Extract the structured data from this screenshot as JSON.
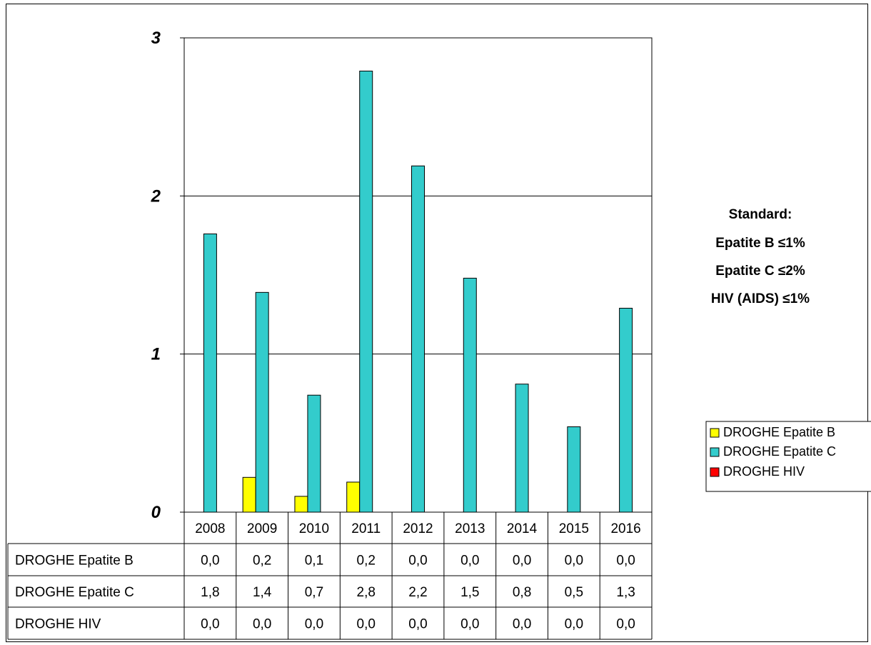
{
  "chart_data": {
    "type": "bar",
    "title": "",
    "xlabel": "",
    "ylabel": "",
    "ylim": [
      0,
      3
    ],
    "yticks": [
      "0",
      "1",
      "2",
      "3"
    ],
    "grid": true,
    "legend_position": "right",
    "categories": [
      "2008",
      "2009",
      "2010",
      "2011",
      "2012",
      "2013",
      "2014",
      "2015",
      "2016"
    ],
    "series": [
      {
        "name": "DROGHE Epatite B",
        "color": "#FFFF00",
        "values": [
          0.0,
          0.22,
          0.1,
          0.19,
          0.0,
          0.0,
          0.0,
          0.0,
          0.0
        ],
        "labels": [
          "0,0",
          "0,2",
          "0,1",
          "0,2",
          "0,0",
          "0,0",
          "0,0",
          "0,0",
          "0,0"
        ]
      },
      {
        "name": "DROGHE Epatite C",
        "color": "#33CCCC",
        "values": [
          1.76,
          1.39,
          0.74,
          2.79,
          2.19,
          1.48,
          0.81,
          0.54,
          1.29
        ],
        "labels": [
          "1,8",
          "1,4",
          "0,7",
          "2,8",
          "2,2",
          "1,5",
          "0,8",
          "0,5",
          "1,3"
        ]
      },
      {
        "name": "DROGHE HIV",
        "color": "#FF0000",
        "values": [
          0,
          0,
          0,
          0,
          0,
          0,
          0,
          0,
          0
        ],
        "labels": [
          "0,0",
          "0,0",
          "0,0",
          "0,0",
          "0,0",
          "0,0",
          "0,0",
          "0,0",
          "0,0"
        ]
      }
    ],
    "annotation": [
      "Standard:",
      "Epatite B ≤1%",
      "Epatite C ≤2%",
      "HIV (AIDS) ≤1%"
    ]
  }
}
